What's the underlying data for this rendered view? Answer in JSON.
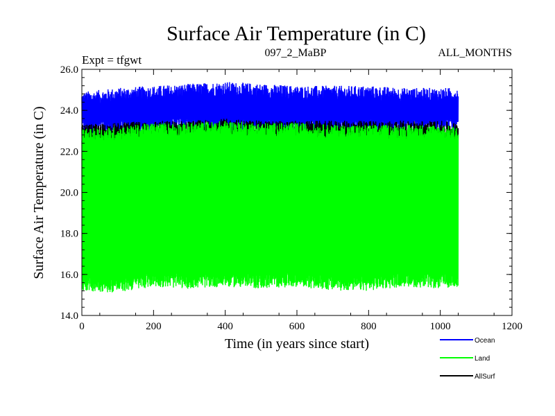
{
  "chart_data": {
    "type": "line",
    "title": "Surface Air Temperature (in C)",
    "subtitle_left": "Expt = tfgwt",
    "subtitle_center": "097_2_MaBP",
    "subtitle_right": "ALL_MONTHS",
    "xlabel": "Time (in years since start)",
    "ylabel": "Surface Air Temperature (in C)",
    "xlim": [
      0,
      1200
    ],
    "ylim": [
      14.0,
      26.0
    ],
    "xticks": [
      "0",
      "200",
      "400",
      "600",
      "800",
      "1000",
      "1200"
    ],
    "yticks": [
      "14.0",
      "16.0",
      "18.0",
      "20.0",
      "22.0",
      "24.0",
      "26.0"
    ],
    "legend_position": "bottom-right",
    "series": [
      {
        "name": "Ocean",
        "color": "#0000ff",
        "note": "monthly values oscillating between seasonal min and max",
        "x": [
          0,
          100,
          200,
          300,
          400,
          500,
          600,
          700,
          800,
          900,
          1000,
          1050
        ],
        "max": [
          24.7,
          24.9,
          25.0,
          25.1,
          25.2,
          25.1,
          25.0,
          25.0,
          25.0,
          24.9,
          24.9,
          24.9
        ],
        "min": [
          23.1,
          23.0,
          23.1,
          23.2,
          23.1,
          23.1,
          23.1,
          23.1,
          23.1,
          23.1,
          23.1,
          23.2
        ]
      },
      {
        "name": "Land",
        "color": "#00ff00",
        "x": [
          0,
          100,
          200,
          300,
          400,
          500,
          600,
          700,
          800,
          900,
          1000,
          1050
        ],
        "max": [
          22.9,
          23.0,
          23.2,
          23.2,
          23.3,
          23.2,
          23.2,
          23.1,
          23.1,
          23.1,
          23.1,
          23.0
        ],
        "min": [
          15.4,
          15.3,
          15.6,
          15.5,
          15.6,
          15.5,
          15.6,
          15.4,
          15.4,
          15.6,
          15.5,
          15.6
        ]
      },
      {
        "name": "AllSurf",
        "color": "#000000",
        "x": [
          0,
          100,
          200,
          300,
          400,
          500,
          600,
          700,
          800,
          900,
          1000,
          1050
        ],
        "max": [
          23.1,
          23.2,
          23.3,
          23.3,
          23.4,
          23.3,
          23.3,
          23.3,
          23.3,
          23.3,
          23.3,
          23.2
        ],
        "min": [
          22.1,
          21.9,
          22.1,
          22.3,
          22.2,
          22.1,
          22.2,
          22.1,
          22.0,
          22.1,
          22.0,
          22.0
        ]
      }
    ]
  }
}
